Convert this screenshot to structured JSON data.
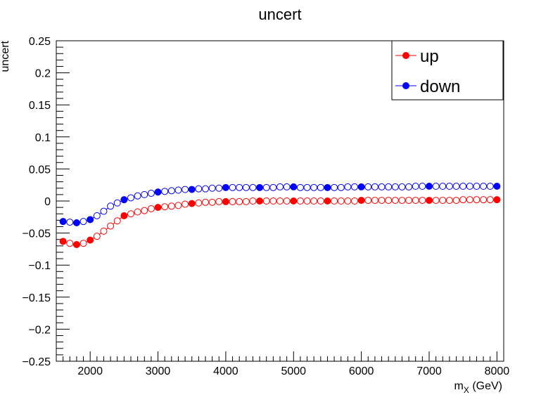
{
  "chart_data": {
    "type": "line",
    "title": "uncert",
    "xlabel_main": "m",
    "xlabel_sub": "X",
    "xlabel_unit": " (GeV)",
    "ylabel": "uncert",
    "xlim": [
      1500,
      8100
    ],
    "ylim": [
      -0.25,
      0.25
    ],
    "xticks": [
      2000,
      3000,
      4000,
      5000,
      6000,
      7000,
      8000
    ],
    "yticks": [
      -0.25,
      -0.2,
      -0.15,
      -0.1,
      -0.05,
      0,
      0.05,
      0.1,
      0.15,
      0.2,
      0.25
    ],
    "ytick_labels": [
      "−0.25",
      "−0.2",
      "−0.15",
      "−0.1",
      "−0.05",
      "0",
      "0.05",
      "0.1",
      "0.15",
      "0.2",
      "0.25"
    ],
    "xtick_labels": [
      "2000",
      "3000",
      "4000",
      "5000",
      "6000",
      "7000",
      "8000"
    ],
    "legend_position": "top-right",
    "grid": false,
    "series": [
      {
        "name": "up",
        "color": "#ff0000",
        "filled": {
          "x": [
            1600,
            1800,
            2000,
            2500,
            3000,
            3500,
            4000,
            4500,
            5000,
            5500,
            6000,
            7000,
            8000
          ],
          "y": [
            -0.063,
            -0.068,
            -0.061,
            -0.023,
            -0.01,
            -0.004,
            -0.001,
            0.0,
            0.0,
            0.0,
            0.001,
            0.001,
            0.002
          ]
        },
        "open": {
          "x": [
            1700,
            1900,
            2100,
            2200,
            2300,
            2400,
            2600,
            2700,
            2800,
            2900,
            3100,
            3200,
            3300,
            3400,
            3600,
            3700,
            3800,
            3900,
            4100,
            4200,
            4300,
            4400,
            4600,
            4700,
            4800,
            4900,
            5100,
            5200,
            5300,
            5400,
            5600,
            5700,
            5800,
            5900,
            6100,
            6200,
            6300,
            6400,
            6500,
            6600,
            6700,
            6800,
            6900,
            7100,
            7200,
            7300,
            7400,
            7500,
            7600,
            7700,
            7800,
            7900
          ],
          "y": [
            -0.066,
            -0.066,
            -0.055,
            -0.047,
            -0.039,
            -0.031,
            -0.02,
            -0.017,
            -0.015,
            -0.012,
            -0.009,
            -0.008,
            -0.007,
            -0.005,
            -0.003,
            -0.002,
            -0.002,
            -0.001,
            -0.001,
            -0.001,
            -0.001,
            0.0,
            0.0,
            0.0,
            0.0,
            0.0,
            0.0,
            0.0,
            0.0,
            0.0,
            0.0,
            0.0,
            0.0,
            0.0,
            0.001,
            0.001,
            0.001,
            0.001,
            0.001,
            0.001,
            0.001,
            0.001,
            0.001,
            0.001,
            0.001,
            0.001,
            0.001,
            0.002,
            0.002,
            0.002,
            0.002,
            0.002
          ]
        }
      },
      {
        "name": "down",
        "color": "#0000ff",
        "filled": {
          "x": [
            1600,
            1800,
            2000,
            2500,
            3000,
            3500,
            4000,
            4500,
            5000,
            5500,
            6000,
            7000,
            8000
          ],
          "y": [
            -0.032,
            -0.034,
            -0.029,
            0.002,
            0.014,
            0.018,
            0.021,
            0.021,
            0.022,
            0.021,
            0.022,
            0.023,
            0.023
          ]
        },
        "open": {
          "x": [
            1700,
            1900,
            2100,
            2200,
            2300,
            2400,
            2600,
            2700,
            2800,
            2900,
            3100,
            3200,
            3300,
            3400,
            3600,
            3700,
            3800,
            3900,
            4100,
            4200,
            4300,
            4400,
            4600,
            4700,
            4800,
            4900,
            5100,
            5200,
            5300,
            5400,
            5600,
            5700,
            5800,
            5900,
            6100,
            6200,
            6300,
            6400,
            6500,
            6600,
            6700,
            6800,
            6900,
            7100,
            7200,
            7300,
            7400,
            7500,
            7600,
            7700,
            7800,
            7900
          ],
          "y": [
            -0.033,
            -0.032,
            -0.023,
            -0.016,
            -0.008,
            -0.003,
            0.005,
            0.008,
            0.01,
            0.012,
            0.015,
            0.016,
            0.017,
            0.018,
            0.019,
            0.019,
            0.02,
            0.02,
            0.021,
            0.021,
            0.021,
            0.021,
            0.021,
            0.021,
            0.022,
            0.022,
            0.021,
            0.021,
            0.021,
            0.021,
            0.021,
            0.021,
            0.022,
            0.022,
            0.022,
            0.022,
            0.022,
            0.022,
            0.022,
            0.022,
            0.022,
            0.023,
            0.023,
            0.023,
            0.023,
            0.023,
            0.023,
            0.023,
            0.023,
            0.023,
            0.023,
            0.023
          ]
        }
      }
    ]
  }
}
